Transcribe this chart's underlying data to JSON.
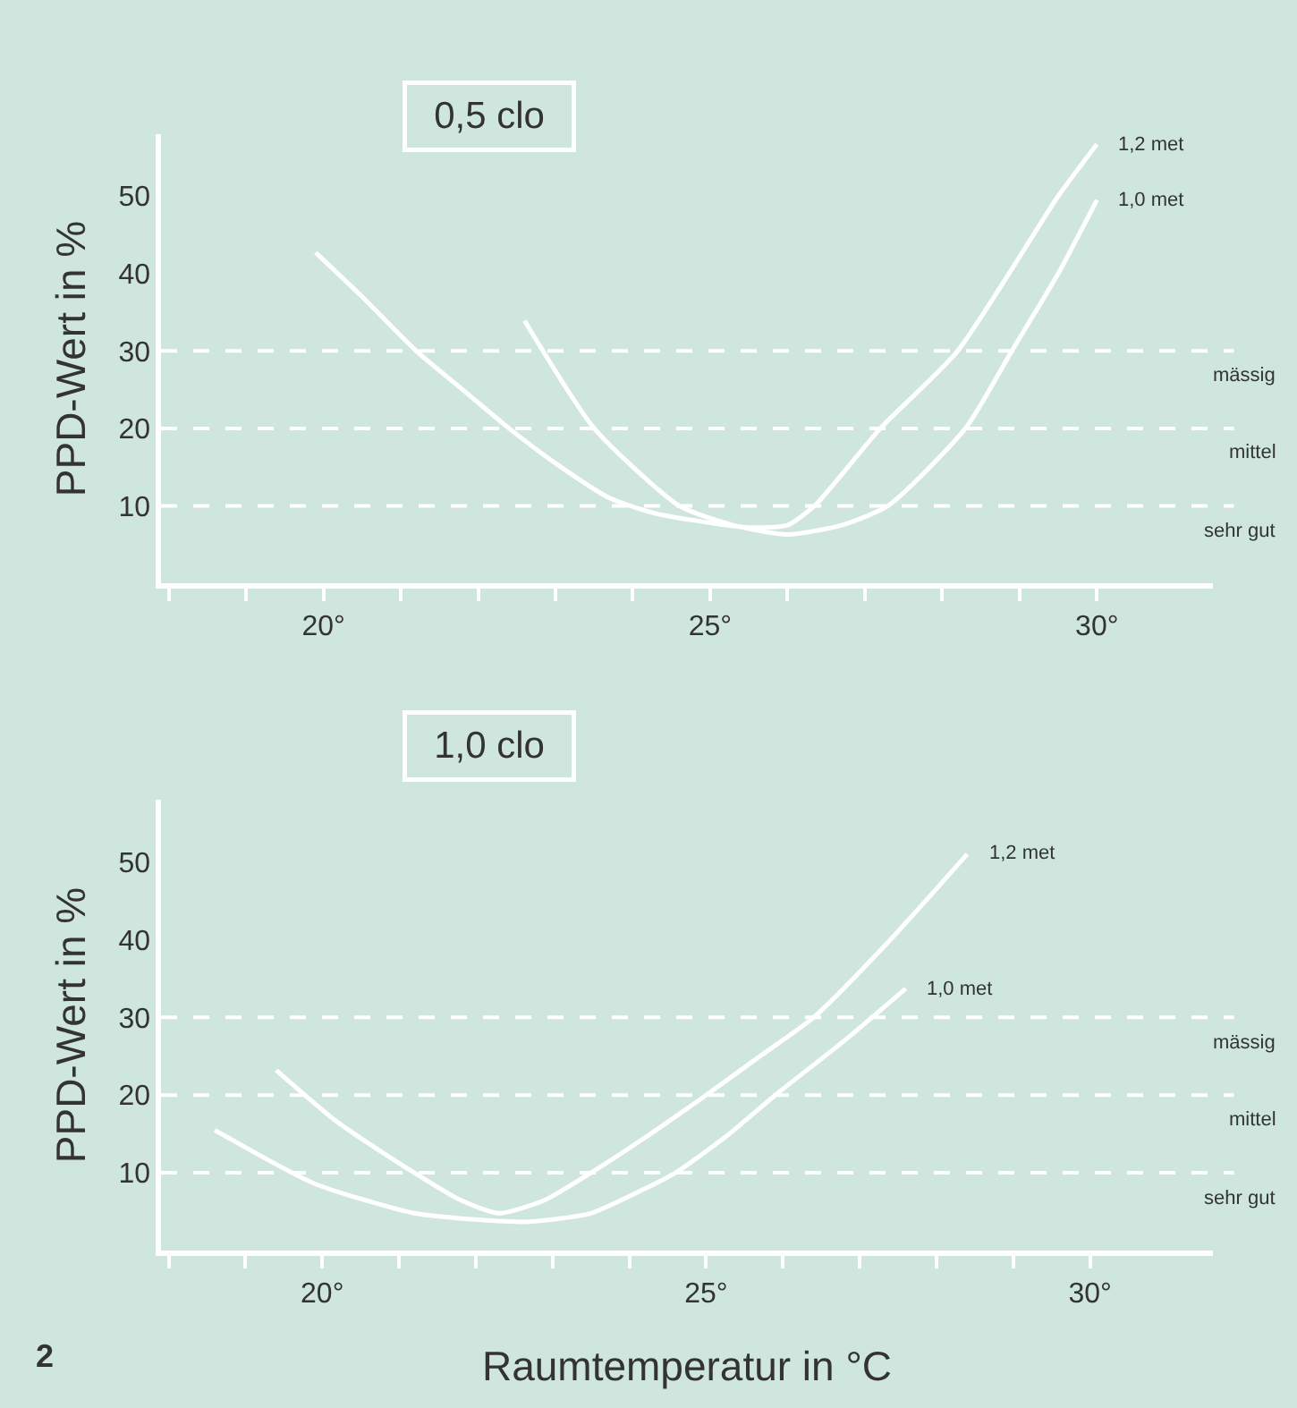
{
  "chart_data": [
    {
      "type": "line",
      "title": "0,5 clo",
      "ylabel": "PPD-Wert in %",
      "xlim": [
        17.9,
        31.5
      ],
      "ylim": [
        0,
        58
      ],
      "xticks": [
        {
          "value": 18,
          "label": null
        },
        {
          "value": 19,
          "label": null
        },
        {
          "value": 20,
          "label": "20°"
        },
        {
          "value": 21,
          "label": null
        },
        {
          "value": 22,
          "label": null
        },
        {
          "value": 23,
          "label": null
        },
        {
          "value": 24,
          "label": null
        },
        {
          "value": 25,
          "label": "25°"
        },
        {
          "value": 26,
          "label": null
        },
        {
          "value": 27,
          "label": null
        },
        {
          "value": 28,
          "label": null
        },
        {
          "value": 29,
          "label": null
        },
        {
          "value": 30,
          "label": "30°"
        }
      ],
      "yticks": [
        10,
        20,
        30,
        40,
        50
      ],
      "grid": false,
      "legend": false,
      "marker": "none",
      "line_style": "solid",
      "series": [
        {
          "name": "1,2 met",
          "color": "#ffffff",
          "x": [
            19.9,
            20.5,
            21.2,
            21.8,
            22.4,
            23.0,
            23.7,
            24.3,
            25.0,
            25.5,
            26.0,
            26.35,
            27.2,
            28.2,
            29.5,
            30.0
          ],
          "values": [
            42.7,
            37,
            30,
            25,
            20,
            15.5,
            11,
            9,
            7.8,
            7.2,
            7.5,
            10,
            20,
            30,
            50,
            56.7
          ]
        },
        {
          "name": "1,0 met",
          "color": "#ffffff",
          "x": [
            22.6,
            23.5,
            24.6,
            25.3,
            26.0,
            26.7,
            27.3,
            28.3,
            28.9,
            29.5,
            30.0
          ],
          "values": [
            33.9,
            20,
            10,
            7.5,
            6.3,
            7.5,
            10,
            20,
            30,
            40,
            49.5
          ]
        }
      ],
      "ref_lines": [
        {
          "axis": "y",
          "value": 30,
          "label": "mässig",
          "color": "#ffffff",
          "line_style": "dashed"
        },
        {
          "axis": "y",
          "value": 20,
          "label": "mittel",
          "color": "#ffffff",
          "line_style": "dashed"
        },
        {
          "axis": "y",
          "value": 10,
          "label": "sehr gut",
          "color": "#ffffff",
          "line_style": "dashed"
        }
      ]
    },
    {
      "type": "line",
      "title": "1,0 clo",
      "ylabel": "PPD-Wert in %",
      "xlabel": "Raumtemperatur in °C",
      "xlim": [
        17.9,
        31.6
      ],
      "ylim": [
        0,
        58
      ],
      "xticks": [
        {
          "value": 18,
          "label": null
        },
        {
          "value": 19,
          "label": null
        },
        {
          "value": 20,
          "label": "20°"
        },
        {
          "value": 21,
          "label": null
        },
        {
          "value": 22,
          "label": null
        },
        {
          "value": 23,
          "label": null
        },
        {
          "value": 24,
          "label": null
        },
        {
          "value": 25,
          "label": "25°"
        },
        {
          "value": 26,
          "label": null
        },
        {
          "value": 27,
          "label": null
        },
        {
          "value": 28,
          "label": null
        },
        {
          "value": 29,
          "label": null
        },
        {
          "value": 30,
          "label": "30°"
        }
      ],
      "yticks": [
        10,
        20,
        30,
        40,
        50
      ],
      "grid": false,
      "legend": false,
      "marker": "none",
      "line_style": "solid",
      "series": [
        {
          "name": "1,2 met",
          "color": "#ffffff",
          "x": [
            19.4,
            20.2,
            21.2,
            21.8,
            22.3,
            22.9,
            23.5,
            24.2,
            25.0,
            25.7,
            26.4,
            27.4,
            28.4
          ],
          "values": [
            23.2,
            16.5,
            10,
            6.5,
            4.8,
            6.5,
            10,
            14.5,
            20,
            25,
            30,
            40,
            51
          ]
        },
        {
          "name": "1,0 met",
          "color": "#ffffff",
          "x": [
            18.6,
            19.9,
            21.2,
            22.0,
            22.7,
            23.5,
            24.0,
            24.6,
            25.3,
            25.9,
            26.8,
            27.6
          ],
          "values": [
            15.5,
            8.6,
            4.8,
            4.0,
            3.7,
            4.8,
            7.0,
            10,
            15,
            20,
            27,
            33.7
          ]
        }
      ],
      "ref_lines": [
        {
          "axis": "y",
          "value": 30,
          "label": "mässig",
          "color": "#ffffff",
          "line_style": "dashed"
        },
        {
          "axis": "y",
          "value": 20,
          "label": "mittel",
          "color": "#ffffff",
          "line_style": "dashed"
        },
        {
          "axis": "y",
          "value": 10,
          "label": "sehr gut",
          "color": "#ffffff",
          "line_style": "dashed"
        }
      ],
      "annotations": [
        "2"
      ]
    }
  ]
}
